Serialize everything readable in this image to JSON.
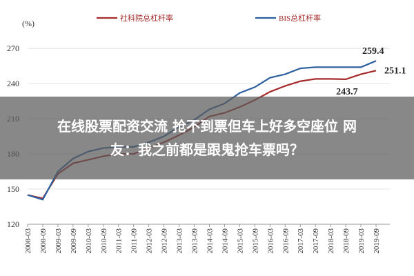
{
  "chart_data": {
    "type": "line",
    "y_unit": "(%)",
    "x": [
      "2008-03",
      "2008-09",
      "2009-03",
      "2009-09",
      "2010-03",
      "2010-09",
      "2011-03",
      "2011-09",
      "2012-03",
      "2012-09",
      "2013-03",
      "2013-09",
      "2014-03",
      "2014-09",
      "2015-03",
      "2015-09",
      "2016-03",
      "2016-09",
      "2017-03",
      "2017-09",
      "2018-03",
      "2018-09",
      "2019-03",
      "2019-09"
    ],
    "series": [
      {
        "name": "社科院总杠杆率",
        "color": "#a52a2a",
        "values": [
          145,
          142,
          163,
          172,
          175,
          178,
          180,
          180,
          185,
          190,
          196,
          203,
          212,
          215,
          220,
          226,
          233,
          238,
          242,
          244,
          244,
          243.7,
          248,
          251.1
        ],
        "value_labels": [
          null,
          null,
          null,
          null,
          null,
          null,
          null,
          null,
          null,
          null,
          null,
          null,
          null,
          null,
          null,
          null,
          null,
          null,
          null,
          null,
          null,
          "243.7",
          null,
          "251.1"
        ]
      },
      {
        "name": "BIS总杠杆率",
        "color": "#2c5f9e",
        "values": [
          145,
          141,
          165,
          176,
          182,
          185,
          186,
          186,
          190,
          195,
          203,
          209,
          218,
          223,
          232,
          237,
          245,
          248,
          253,
          254,
          254,
          254,
          254,
          259.4
        ],
        "value_labels": [
          null,
          null,
          null,
          null,
          null,
          null,
          null,
          null,
          null,
          null,
          null,
          null,
          null,
          null,
          null,
          null,
          null,
          null,
          null,
          null,
          null,
          null,
          null,
          "259.4"
        ]
      }
    ],
    "ylim": [
      120,
      276
    ],
    "yticks": [
      120,
      150,
      180,
      210,
      240,
      270
    ],
    "grid": true
  },
  "overlay": {
    "lines": [
      "在线股票配资交流 抢不到票但车上好多空座位 网",
      "友：我之前都是跟鬼抢车票吗？"
    ]
  }
}
